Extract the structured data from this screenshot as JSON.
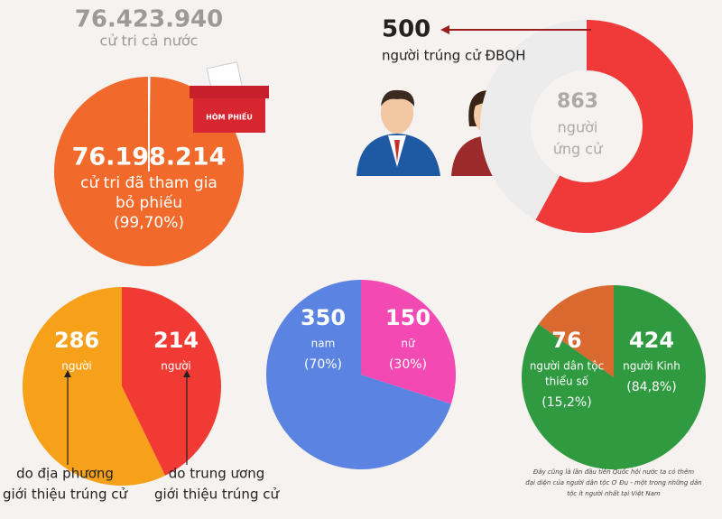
{
  "chart_data": [
    {
      "type": "pie",
      "values": [
        76198214
      ],
      "value_labels": [
        "76.198.214"
      ],
      "total": 76423940,
      "total_label": "76.423.940",
      "total_caption": "cử tri cả nước",
      "captions": [
        [
          "cử tri đã tham gia",
          "bỏ phiếu"
        ]
      ],
      "percents": [
        99.7
      ],
      "percent_labels": [
        "(99,70%)"
      ],
      "colors": [
        "#f26a2b"
      ],
      "rest_color": "#cfcfcf",
      "ballot_box_label": "HÒM PHIẾU"
    },
    {
      "type": "donut",
      "values": [
        500
      ],
      "value_labels": [
        "500"
      ],
      "total": 863,
      "captions": [
        [
          "người trúng cử ĐBQH"
        ]
      ],
      "total_caption": [
        "người",
        "ứng cử"
      ],
      "colors": [
        "#f03a3a"
      ],
      "rest_color": "#ececec"
    },
    {
      "type": "pie",
      "values": [
        286,
        214
      ],
      "value_labels": [
        "286",
        "214"
      ],
      "units": [
        [
          "người"
        ],
        [
          "người"
        ]
      ],
      "notes": [
        [
          "do địa phương",
          "giới thiệu trúng cử"
        ],
        [
          "do trung ương",
          "giới thiệu trúng cử"
        ]
      ],
      "colors": [
        "#f7a11a",
        "#f23a35"
      ]
    },
    {
      "type": "pie",
      "values": [
        350,
        150
      ],
      "value_labels": [
        "350",
        "150"
      ],
      "units": [
        [
          "nam"
        ],
        [
          "nữ"
        ]
      ],
      "percents": [
        70,
        30
      ],
      "percent_labels": [
        "(70%)",
        "(30%)"
      ],
      "colors": [
        "#5b84e2",
        "#f24ab2"
      ]
    },
    {
      "type": "pie",
      "values": [
        76,
        424
      ],
      "value_labels": [
        "76",
        "424"
      ],
      "units": [
        [
          "người dân tộc",
          "thiểu số"
        ],
        [
          "người Kinh"
        ]
      ],
      "percents": [
        15.2,
        84.8
      ],
      "percent_labels": [
        "(15,2%)",
        "(84,8%)"
      ],
      "colors": [
        "#d9692e",
        "#2f9a40"
      ],
      "footnote": [
        "Đây cũng là lần đầu tiên Quốc hội nước ta có thêm",
        "đại diện của người dân tộc Ơ Đu - một trong những dân",
        "tộc ít người nhất tại Việt Nam"
      ]
    }
  ]
}
